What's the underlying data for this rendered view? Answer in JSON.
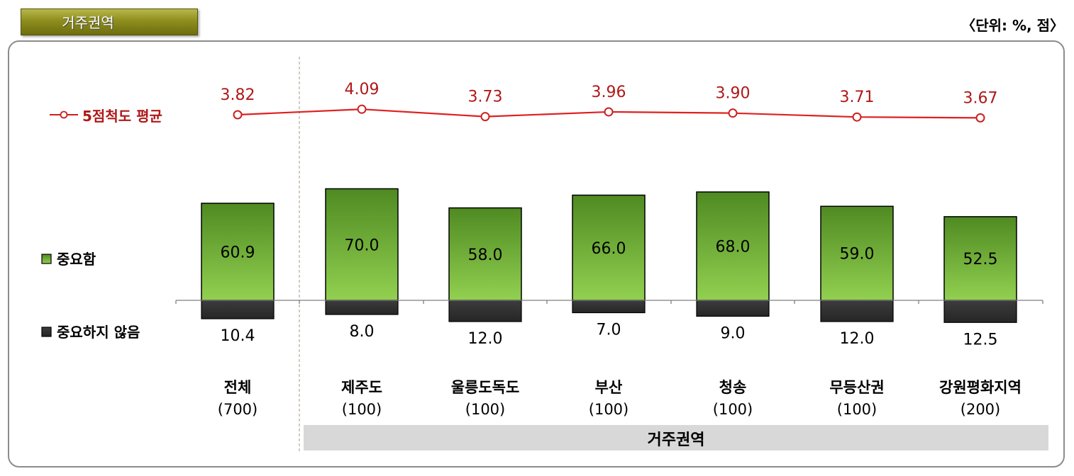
{
  "header": {
    "badge": "거주권역",
    "unit": "〈단위: %, 점〉"
  },
  "colors": {
    "important": "#6aa832",
    "not_important": "#333333",
    "line": "#cc1f1f",
    "group_band": "#d8d8d8"
  },
  "chart_data": {
    "type": "bar",
    "categories": [
      "전체",
      "제주도",
      "울릉도독도",
      "부산",
      "청송",
      "무등산권",
      "강원평화지역"
    ],
    "counts": [
      "(700)",
      "(100)",
      "(100)",
      "(100)",
      "(100)",
      "(100)",
      "(200)"
    ],
    "group_label": "거주권역",
    "series": [
      {
        "name": "중요함",
        "values": [
          60.9,
          70.0,
          58.0,
          66.0,
          68.0,
          59.0,
          52.5
        ]
      },
      {
        "name": "중요하지 않음",
        "values": [
          10.4,
          8.0,
          12.0,
          7.0,
          9.0,
          12.0,
          12.5
        ]
      }
    ],
    "line_series": {
      "name": "5점척도 평균",
      "values": [
        3.82,
        4.09,
        3.73,
        3.96,
        3.9,
        3.71,
        3.67
      ]
    },
    "legend": {
      "line": "5점척도 평균",
      "important": "중요함",
      "not_important": "중요하지 않음"
    }
  }
}
